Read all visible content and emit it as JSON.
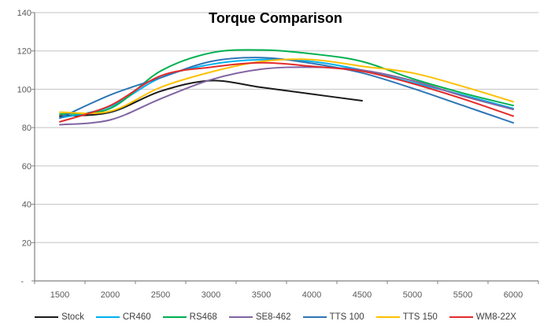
{
  "chart_data": {
    "type": "line",
    "title": "Torque Comparison",
    "xlabel": "",
    "ylabel": "",
    "x": [
      1500,
      2000,
      2500,
      3000,
      3500,
      4000,
      4500,
      5000,
      5500,
      6000
    ],
    "x_tick_labels": [
      "1500",
      "2000",
      "2500",
      "3000",
      "3500",
      "4000",
      "4500",
      "5000",
      "5500",
      "6000"
    ],
    "y_ticks": [
      {
        "value": 0,
        "label": "-"
      },
      {
        "value": 20,
        "label": "20"
      },
      {
        "value": 40,
        "label": "40"
      },
      {
        "value": 60,
        "label": "60"
      },
      {
        "value": 80,
        "label": "80"
      },
      {
        "value": 100,
        "label": "100"
      },
      {
        "value": 120,
        "label": "120"
      },
      {
        "value": 140,
        "label": "140"
      }
    ],
    "ylim": [
      0,
      140
    ],
    "grid": true,
    "smoothed_lines": true,
    "legend_position": "bottom",
    "series": [
      {
        "name": "Stock",
        "color": "#1A1A1A",
        "values": [
          86,
          88,
          99,
          104.5,
          101,
          97.5,
          94,
          null,
          null,
          null
        ]
      },
      {
        "name": "CR460",
        "color": "#00B0F0",
        "values": [
          85,
          91,
          106,
          113,
          115.5,
          114.5,
          110,
          103.5,
          97,
          90
        ]
      },
      {
        "name": "RS468",
        "color": "#00B050",
        "values": [
          87,
          90,
          109.5,
          119,
          120.5,
          118.5,
          114.5,
          105.5,
          98,
          91.5
        ]
      },
      {
        "name": "SE8-462",
        "color": "#8064A2",
        "values": [
          81.5,
          84,
          95,
          105,
          110.5,
          111.5,
          110,
          104.5,
          96.5,
          89.5
        ]
      },
      {
        "name": "TTS 100",
        "color": "#2E75B6",
        "values": [
          85,
          97,
          106,
          114.5,
          116.5,
          113.5,
          108.5,
          100.5,
          91.5,
          82.5
        ]
      },
      {
        "name": "TTS 150",
        "color": "#FFC000",
        "values": [
          88,
          88.5,
          101,
          109,
          114.5,
          115.5,
          112,
          108.5,
          101.5,
          93.5
        ]
      },
      {
        "name": "WM8-22X",
        "color": "#E32B2B",
        "values": [
          83,
          91.5,
          107,
          111.5,
          113.8,
          112,
          109.4,
          103,
          95,
          86
        ]
      }
    ],
    "style": {
      "grid_color": "#C3C3C3",
      "axis_color": "#808080",
      "tick_label_color": "#595959",
      "title_color": "#000000",
      "legend_text_color": "#404040",
      "background": "#FFFFFF"
    }
  }
}
